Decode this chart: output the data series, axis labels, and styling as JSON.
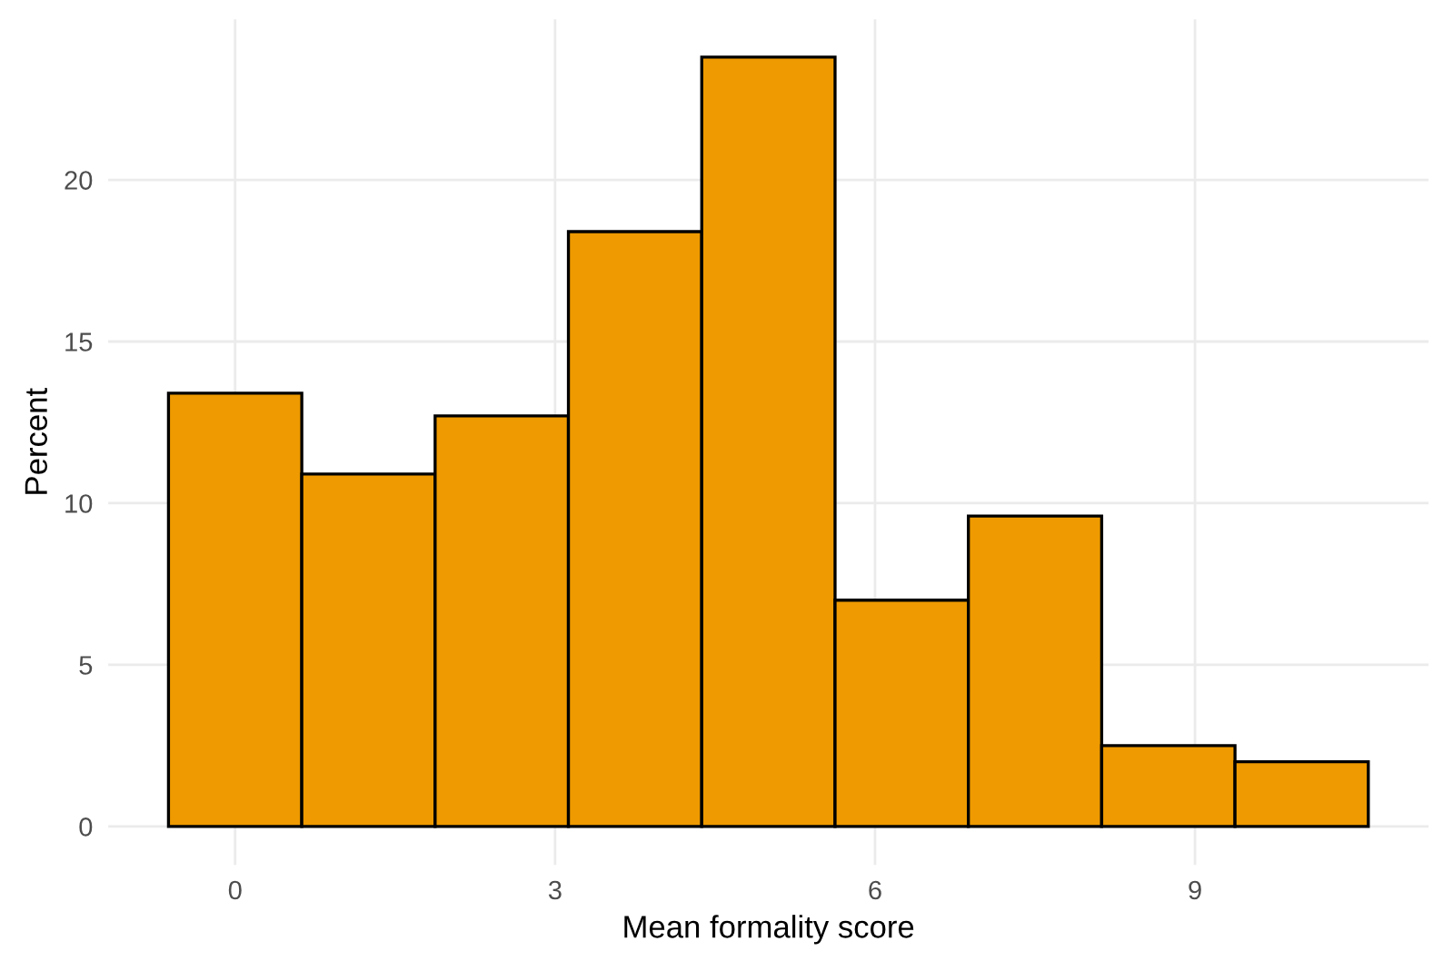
{
  "chart_data": {
    "type": "histogram",
    "xlabel": "Mean formality score",
    "ylabel": "Percent",
    "bins": [
      -0.625,
      0.625,
      1.875,
      3.125,
      4.375,
      5.625,
      6.875,
      8.125,
      9.375,
      10.625
    ],
    "values": [
      13.4,
      10.9,
      12.7,
      18.4,
      23.8,
      7.0,
      9.6,
      2.5,
      2.0
    ],
    "color": "#ee9a00",
    "xlim": [
      -1.19,
      11.19
    ],
    "xticks": [
      0,
      3,
      6,
      9
    ],
    "ylim": [
      -1.19,
      24.97
    ],
    "yticks": [
      0,
      5,
      10,
      15,
      20
    ],
    "grid": true
  }
}
